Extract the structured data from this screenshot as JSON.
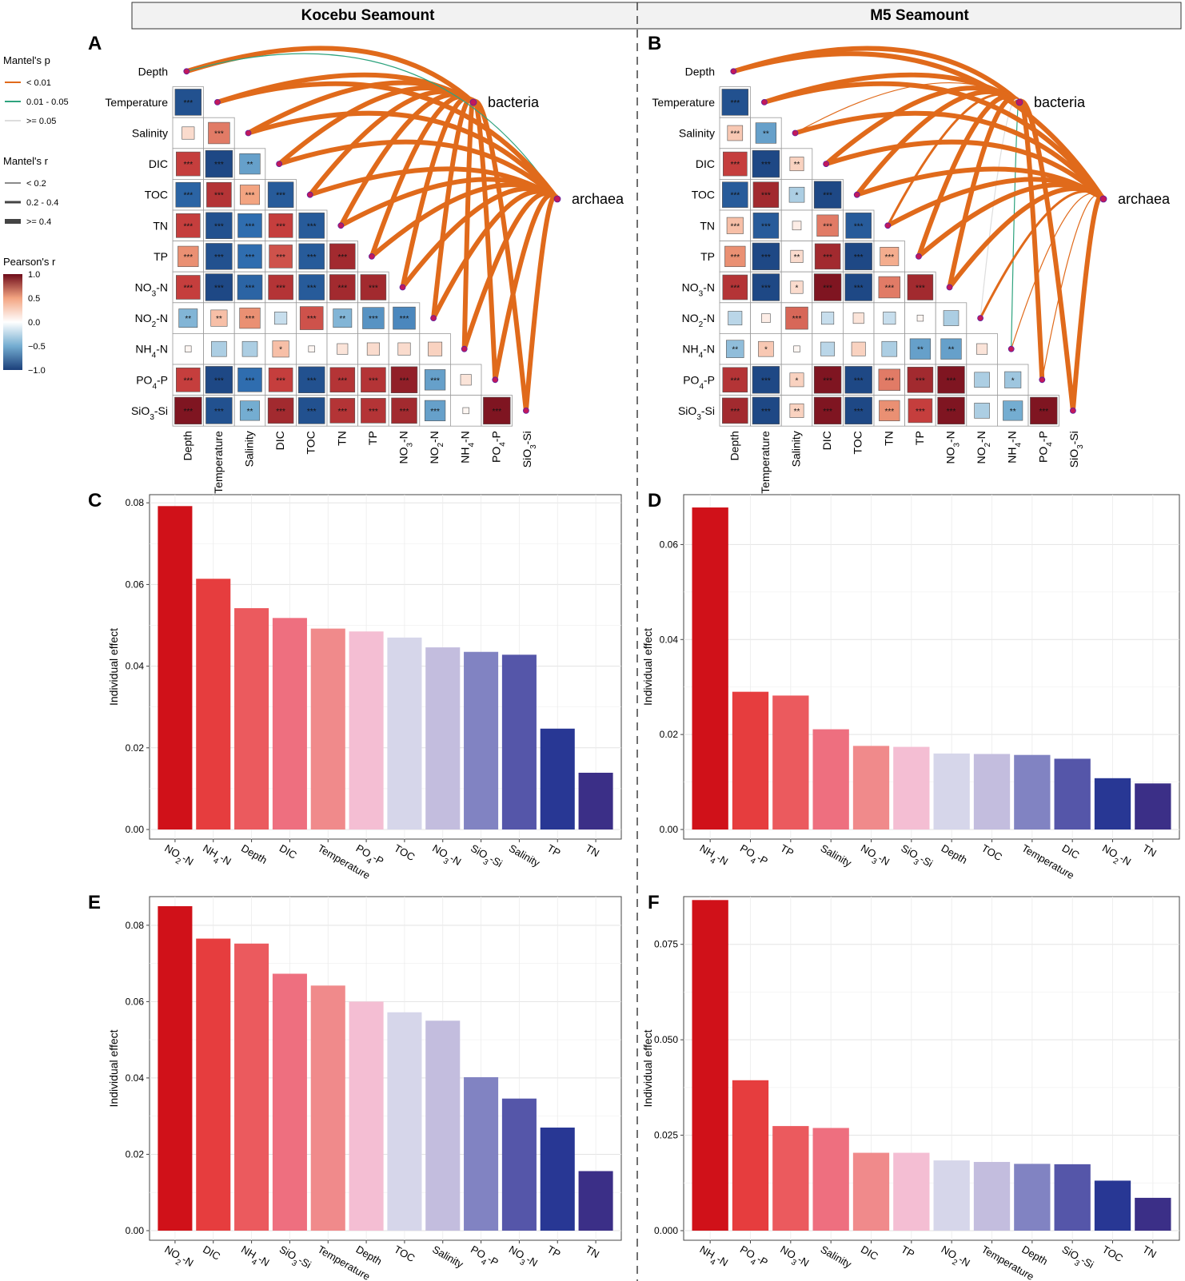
{
  "header": {
    "left": "Kocebu Seamount",
    "right": "M5 Seamount"
  },
  "legend": {
    "mantel_p_title": "Mantel's p",
    "mantel_p_items": [
      {
        "label": "< 0.01",
        "color": "#E06A1B"
      },
      {
        "label": "0.01 - 0.05",
        "color": "#2EA37E"
      },
      {
        "label": ">= 0.05",
        "color": "#DDDDDD"
      }
    ],
    "mantel_r_title": "Mantel's r",
    "mantel_r_items": [
      "< 0.2",
      "0.2 - 0.4",
      ">= 0.4"
    ],
    "pearson_title": "Pearson's r",
    "pearson_ticks": [
      "1.0",
      "0.5",
      "0.0",
      "−0.5",
      "−1.0"
    ]
  },
  "variables": [
    "Depth",
    "Temperature",
    "Salinity",
    "DIC",
    "TOC",
    "TN",
    "TP",
    "NO3-N",
    "NO2-N",
    "NH4-N",
    "PO4-P",
    "SiO3-Si"
  ],
  "var_labels": [
    {
      "base": "Depth"
    },
    {
      "base": "Temperature"
    },
    {
      "base": "Salinity"
    },
    {
      "base": "DIC"
    },
    {
      "base": "TOC"
    },
    {
      "base": "TN"
    },
    {
      "base": "TP"
    },
    {
      "base": "NO",
      "sub": "3",
      "rest": "-N"
    },
    {
      "base": "NO",
      "sub": "2",
      "rest": "-N"
    },
    {
      "base": "NH",
      "sub": "4",
      "rest": "-N"
    },
    {
      "base": "PO",
      "sub": "4",
      "rest": "-P"
    },
    {
      "base": "SiO",
      "sub": "3",
      "rest": "-Si"
    }
  ],
  "color_scale": {
    "neg": "#1A3F7A",
    "mid": "#FFFFFF",
    "pos": "#6E0B1A",
    "range": [
      -1,
      1
    ]
  },
  "chart_data": [
    {
      "panel": "A",
      "type": "heatmap",
      "title": "Kocebu Seamount",
      "communities": [
        "bacteria",
        "archaea"
      ],
      "correlation": [
        [
          -0.9
        ],
        [
          0.2,
          0.6
        ],
        [
          0.75,
          -0.95,
          -0.55
        ],
        [
          -0.8,
          0.8,
          0.5,
          -0.85
        ],
        [
          0.75,
          -0.9,
          -0.75,
          0.75,
          -0.85
        ],
        [
          0.55,
          -0.9,
          -0.75,
          0.7,
          -0.85,
          0.85
        ],
        [
          0.75,
          -0.95,
          -0.8,
          0.8,
          -0.85,
          0.85,
          0.85
        ],
        [
          -0.45,
          0.35,
          0.55,
          -0.2,
          0.7,
          -0.45,
          -0.6,
          -0.65
        ],
        [
          0.05,
          -0.3,
          -0.3,
          0.35,
          0.05,
          0.15,
          0.2,
          0.2,
          0.25
        ],
        [
          0.75,
          -0.95,
          -0.75,
          0.75,
          -0.9,
          0.8,
          0.8,
          0.9,
          -0.55,
          0.15
        ],
        [
          0.95,
          -0.9,
          -0.5,
          0.85,
          -0.9,
          0.8,
          0.8,
          0.85,
          -0.55,
          0.05,
          0.95
        ]
      ],
      "stars": [
        [
          "***"
        ],
        [
          "",
          "***"
        ],
        [
          "***",
          "***",
          "**"
        ],
        [
          "***",
          "***",
          "***",
          "***"
        ],
        [
          "***",
          "***",
          "***",
          "***",
          "***"
        ],
        [
          "***",
          "***",
          "***",
          "***",
          "***",
          "***"
        ],
        [
          "***",
          "***",
          "***",
          "***",
          "***",
          "***",
          "***"
        ],
        [
          "**",
          "**",
          "***",
          "",
          "***",
          "**",
          "***",
          "***"
        ],
        [
          "",
          "",
          "",
          "*",
          "",
          "",
          "",
          "",
          ""
        ],
        [
          "***",
          "***",
          "***",
          "***",
          "***",
          "***",
          "***",
          "***",
          "***",
          ""
        ],
        [
          "***",
          "***",
          "**",
          "***",
          "***",
          "***",
          "***",
          "***",
          "***",
          "",
          "***"
        ]
      ],
      "mantel": {
        "bacteria": [
          {
            "p": "<0.01",
            "r": ">=0.4"
          },
          {
            "p": "<0.01",
            "r": ">=0.4"
          },
          {
            "p": "<0.01",
            "r": ">=0.4"
          },
          {
            "p": "<0.01",
            "r": ">=0.4"
          },
          {
            "p": "<0.01",
            "r": ">=0.4"
          },
          {
            "p": "<0.01",
            "r": ">=0.4"
          },
          {
            "p": "<0.01",
            "r": ">=0.4"
          },
          {
            "p": "<0.01",
            "r": ">=0.4"
          },
          {
            "p": "<0.01",
            "r": ">=0.4"
          },
          {
            "p": "<0.01",
            "r": ">=0.4"
          },
          {
            "p": "<0.01",
            "r": ">=0.4"
          },
          {
            "p": "<0.01",
            "r": ">=0.4"
          }
        ],
        "archaea": [
          {
            "p": "0.01-0.05",
            "r": "<0.2"
          },
          {
            "p": "<0.01",
            "r": ">=0.4"
          },
          {
            "p": "<0.01",
            "r": ">=0.4"
          },
          {
            "p": "<0.01",
            "r": ">=0.4"
          },
          {
            "p": "<0.01",
            "r": ">=0.4"
          },
          {
            "p": "<0.01",
            "r": ">=0.4"
          },
          {
            "p": "<0.01",
            "r": ">=0.4"
          },
          {
            "p": "<0.01",
            "r": ">=0.4"
          },
          {
            "p": "<0.01",
            "r": ">=0.4"
          },
          {
            "p": "<0.01",
            "r": ">=0.4"
          },
          {
            "p": "<0.01",
            "r": ">=0.4"
          },
          {
            "p": "<0.01",
            "r": ">=0.4"
          }
        ]
      }
    },
    {
      "panel": "B",
      "type": "heatmap",
      "title": "M5 Seamount",
      "communities": [
        "bacteria",
        "archaea"
      ],
      "correlation": [
        [
          -0.9
        ],
        [
          0.3,
          -0.55
        ],
        [
          0.75,
          -0.95,
          0.25
        ],
        [
          -0.85,
          0.85,
          -0.3,
          -0.95
        ],
        [
          0.35,
          -0.85,
          0.1,
          0.6,
          -0.85
        ],
        [
          0.55,
          -0.95,
          0.2,
          0.85,
          -0.95,
          0.45
        ],
        [
          0.8,
          -0.95,
          0.2,
          0.95,
          -0.95,
          0.6,
          0.85
        ],
        [
          -0.25,
          0.1,
          0.65,
          -0.2,
          0.15,
          -0.2,
          0.05,
          -0.3
        ],
        [
          -0.4,
          0.3,
          0.05,
          -0.25,
          0.25,
          -0.3,
          -0.55,
          -0.55,
          0.15
        ],
        [
          0.8,
          -0.95,
          0.25,
          0.95,
          -0.95,
          0.6,
          0.85,
          0.95,
          -0.3,
          -0.35
        ],
        [
          0.85,
          -0.95,
          0.25,
          0.95,
          -0.95,
          0.55,
          0.75,
          0.95,
          -0.3,
          -0.5,
          0.95
        ]
      ],
      "stars": [
        [
          "***"
        ],
        [
          "***",
          "**"
        ],
        [
          "***",
          "***",
          "**"
        ],
        [
          "***",
          "***",
          "*",
          "***"
        ],
        [
          "***",
          "***",
          "",
          "***",
          "***"
        ],
        [
          "***",
          "***",
          "**",
          "***",
          "***",
          "***"
        ],
        [
          "***",
          "***",
          "*",
          "***",
          "***",
          "***",
          "***"
        ],
        [
          "",
          "",
          "***",
          "",
          "",
          "",
          "",
          "",
          ""
        ],
        [
          "**",
          "*",
          "",
          "",
          "",
          "",
          "**",
          "**",
          ""
        ],
        [
          "***",
          "***",
          "*",
          "***",
          "***",
          "***",
          "***",
          "***",
          "",
          "*"
        ],
        [
          "***",
          "***",
          "**",
          "***",
          "***",
          "***",
          "***",
          "***",
          "",
          "**",
          "***"
        ]
      ],
      "mantel": {
        "bacteria": [
          {
            "p": "<0.01",
            "r": ">=0.4"
          },
          {
            "p": "<0.01",
            "r": ">=0.4"
          },
          {
            "p": "<0.01",
            "r": "<0.2"
          },
          {
            "p": "<0.01",
            "r": ">=0.4"
          },
          {
            "p": "<0.01",
            "r": ">=0.4"
          },
          {
            "p": "<0.01",
            "r": "0.2-0.4"
          },
          {
            "p": "<0.01",
            "r": ">=0.4"
          },
          {
            "p": "<0.01",
            "r": ">=0.4"
          },
          {
            "p": ">=0.05",
            "r": "<0.2"
          },
          {
            "p": "0.01-0.05",
            "r": "<0.2"
          },
          {
            "p": "<0.01",
            "r": ">=0.4"
          },
          {
            "p": "<0.01",
            "r": ">=0.4"
          }
        ],
        "archaea": [
          {
            "p": "<0.01",
            "r": ">=0.4"
          },
          {
            "p": "<0.01",
            "r": ">=0.4"
          },
          {
            "p": "<0.01",
            "r": ">=0.4"
          },
          {
            "p": "<0.01",
            "r": ">=0.4"
          },
          {
            "p": "<0.01",
            "r": ">=0.4"
          },
          {
            "p": "<0.01",
            "r": ">=0.4"
          },
          {
            "p": "<0.01",
            "r": ">=0.4"
          },
          {
            "p": "<0.01",
            "r": ">=0.4"
          },
          {
            "p": "<0.01",
            "r": "0.2-0.4"
          },
          {
            "p": "<0.01",
            "r": "<0.2"
          },
          {
            "p": "<0.01",
            "r": "<0.2"
          },
          {
            "p": "<0.01",
            "r": ">=0.4"
          }
        ]
      }
    },
    {
      "panel": "C",
      "type": "bar",
      "ylabel": "Individual effect",
      "ylim": [
        0,
        0.082
      ],
      "yticks": [
        0,
        0.02,
        0.04,
        0.06,
        0.08
      ],
      "ytick_labels": [
        "0.00",
        "0.02",
        "0.04",
        "0.06",
        "0.08"
      ],
      "categories": [
        "NO2-N",
        "NH4-N",
        "Depth",
        "DIC",
        "Temperature",
        "PO4-P",
        "TOC",
        "NO3-N",
        "SiO3-Si",
        "Salinity",
        "TP",
        "TN"
      ],
      "values": [
        0.0792,
        0.0614,
        0.0542,
        0.0518,
        0.0492,
        0.0485,
        0.047,
        0.0446,
        0.0435,
        0.0428,
        0.0247,
        0.0139
      ]
    },
    {
      "panel": "D",
      "type": "bar",
      "ylabel": "Individual effect",
      "ylim": [
        0,
        0.0705
      ],
      "yticks": [
        0,
        0.02,
        0.04,
        0.06
      ],
      "ytick_labels": [
        "0.00",
        "0.02",
        "0.04",
        "0.06"
      ],
      "categories": [
        "NH4-N",
        "PO4-P",
        "TP",
        "Salinity",
        "NO3-N",
        "SiO3-Si",
        "Depth",
        "TOC",
        "Temperature",
        "DIC",
        "NO2-N",
        "TN"
      ],
      "values": [
        0.0678,
        0.029,
        0.0282,
        0.0211,
        0.0176,
        0.0174,
        0.016,
        0.0159,
        0.0157,
        0.0149,
        0.0108,
        0.0097
      ]
    },
    {
      "panel": "E",
      "type": "bar",
      "ylabel": "Individual effect",
      "ylim": [
        0,
        0.0875
      ],
      "yticks": [
        0,
        0.02,
        0.04,
        0.06,
        0.08
      ],
      "ytick_labels": [
        "0.00",
        "0.02",
        "0.04",
        "0.06",
        "0.08"
      ],
      "categories": [
        "NO2-N",
        "DIC",
        "NH4-N",
        "SiO3-Si",
        "Temperature",
        "Depth",
        "TOC",
        "Salinity",
        "PO4-P",
        "NO3-N",
        "TP",
        "TN"
      ],
      "values": [
        0.085,
        0.0765,
        0.0752,
        0.0673,
        0.0642,
        0.06,
        0.0572,
        0.055,
        0.0402,
        0.0346,
        0.027,
        0.0156
      ]
    },
    {
      "panel": "F",
      "type": "bar",
      "ylabel": "Individual effect",
      "ylim": [
        0,
        0.0875
      ],
      "yticks": [
        0,
        0.025,
        0.05,
        0.075
      ],
      "ytick_labels": [
        "0.000",
        "0.025",
        "0.050",
        "0.075"
      ],
      "categories": [
        "NH4-N",
        "PO4-P",
        "NO3-N",
        "Salinity",
        "DIC",
        "TP",
        "NO2-N",
        "Temperature",
        "Depth",
        "SiO3-Si",
        "TOC",
        "TN"
      ],
      "values": [
        0.0866,
        0.0394,
        0.0274,
        0.0269,
        0.0204,
        0.0204,
        0.0184,
        0.018,
        0.0175,
        0.0174,
        0.0131,
        0.0086
      ]
    }
  ],
  "bar_palette": [
    "#D01119",
    "#E63D3E",
    "#EB5A5E",
    "#EE6F7F",
    "#F08A8B",
    "#F4BED3",
    "#D6D6EA",
    "#C3BDDE",
    "#8183C2",
    "#5556A9",
    "#283794",
    "#3B2F87"
  ]
}
